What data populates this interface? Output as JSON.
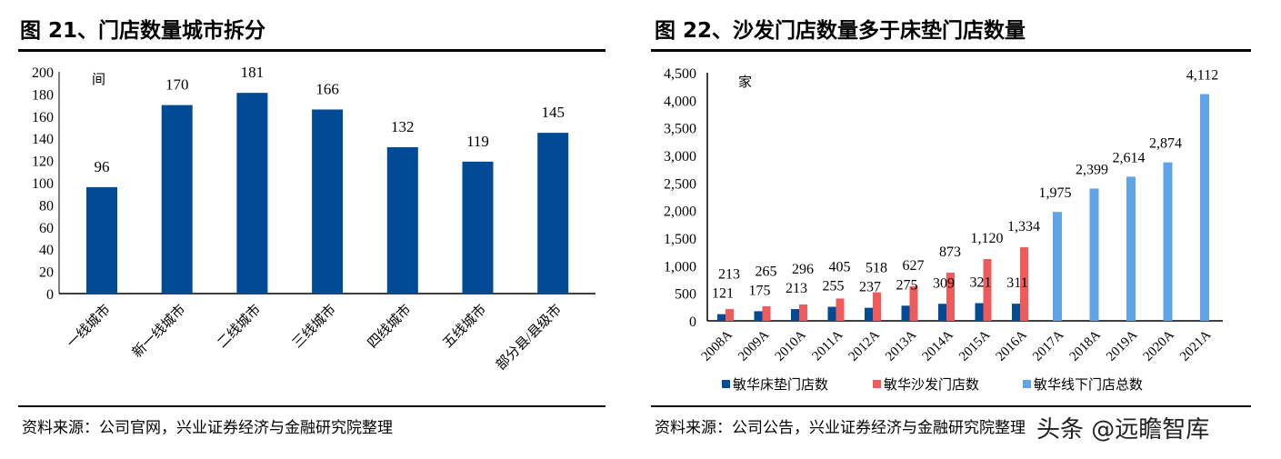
{
  "source_left": "资料来源：公司官网，兴业证券经济与金融研究院整理",
  "source_right": "资料来源：公司公告，兴业证券经济与金融研究院整理",
  "watermark": "头条 @远瞻智库",
  "chart_data": [
    {
      "type": "bar",
      "title": "图 21、门店数量城市拆分",
      "ylabel": "间",
      "ylim": [
        0,
        200
      ],
      "yticks": [
        0,
        20,
        40,
        60,
        80,
        100,
        120,
        140,
        160,
        180,
        200
      ],
      "categories": [
        "一线城市",
        "新一线城市",
        "二线城市",
        "三线城市",
        "四线城市",
        "五线城市",
        "部分县/县级市"
      ],
      "values": [
        96,
        170,
        181,
        166,
        132,
        119,
        145
      ],
      "color": "#004a96"
    },
    {
      "type": "bar",
      "title": "图 22、沙发门店数量多于床垫门店数量",
      "ylabel": "家",
      "ylim": [
        0,
        4500
      ],
      "yticks": [
        "0",
        "500",
        "1,000",
        "1,500",
        "2,000",
        "2,500",
        "3,000",
        "3,500",
        "4,000",
        "4,500"
      ],
      "categories": [
        "2008A",
        "2009A",
        "2010A",
        "2011A",
        "2012A",
        "2013A",
        "2014A",
        "2015A",
        "2016A",
        "2017A",
        "2018A",
        "2019A",
        "2020A",
        "2021A"
      ],
      "series": [
        {
          "name": "敏华床垫门店数",
          "color": "#004a96",
          "values": [
            121,
            175,
            213,
            255,
            237,
            275,
            309,
            321,
            311,
            null,
            null,
            null,
            null,
            null
          ]
        },
        {
          "name": "敏华沙发门店数",
          "color": "#ef5b5b",
          "values": [
            213,
            265,
            296,
            405,
            518,
            627,
            873,
            1120,
            1334,
            null,
            null,
            null,
            null,
            null
          ]
        },
        {
          "name": "敏华线下门店总数",
          "color": "#5fa3e8",
          "values": [
            null,
            null,
            null,
            null,
            null,
            null,
            null,
            null,
            null,
            1975,
            2399,
            2614,
            2874,
            4112
          ]
        }
      ]
    }
  ]
}
